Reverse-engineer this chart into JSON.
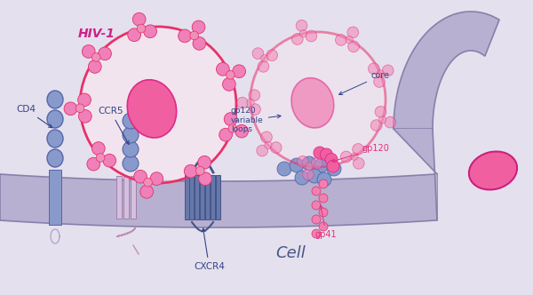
{
  "bg_color": "#e5e0ed",
  "hiv_ring_color": "#e8306a",
  "hiv_core_color": "#f060a0",
  "spike_color": "#f080b8",
  "spike_edge": "#e03070",
  "cd4_color": "#8899cc",
  "cd4_edge": "#5566aa",
  "mem_color": "#b8b0d0",
  "mem_edge": "#8880aa",
  "mem_inner": "#ccc4e0",
  "dark_label": "#334488",
  "pink_label": "#e03080",
  "hiv_label_color": "#cc2288",
  "cell_label_color": "#445588",
  "label_hiv": "HIV-1",
  "label_cd4": "CD4",
  "label_ccr5": "CCR5",
  "label_cxcr4": "CXCR4",
  "label_cell": "Cell",
  "label_gp120vl": "gp120\nvariable\nloops",
  "label_core": "core",
  "label_gp120": "gp120",
  "label_gp41": "gp41"
}
